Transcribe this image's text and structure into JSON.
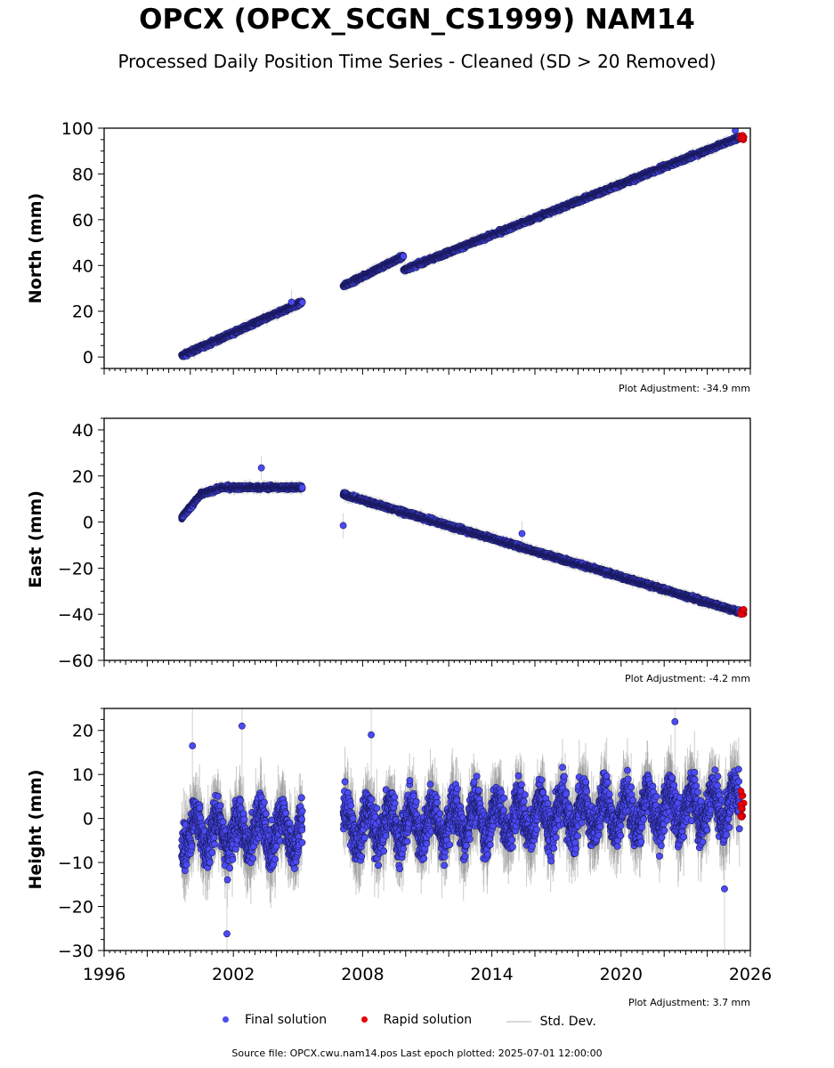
{
  "header": {
    "title": "OPCX (OPCX_SCGN_CS1999) NAM14",
    "subtitle": "Processed Daily Position Time Series - Cleaned (SD > 20 Removed)"
  },
  "colors": {
    "final": "#4b4bf5",
    "rapid": "#e8000b",
    "stddev": "#d3d3d3"
  },
  "legend": {
    "final": "Final solution",
    "rapid": "Rapid solution",
    "stddev": "Std. Dev."
  },
  "footer": {
    "source": "Source file: OPCX.cwu.nam14.pos  Last epoch plotted: 2025-07-01 12:00:00"
  },
  "chart_data": [
    {
      "type": "scatter",
      "ylabel": "North (mm)",
      "adjustment": "Plot Adjustment: -34.9 mm",
      "xlim": [
        1996,
        2026
      ],
      "ylim": [
        -5,
        100
      ],
      "yticks": [
        0,
        20,
        40,
        60,
        80,
        100
      ],
      "ytick_labels": [
        "0",
        "20",
        "40",
        "60",
        "80",
        "100"
      ],
      "segments": [
        {
          "x": [
            1999.6,
            2005.2
          ],
          "y": [
            0.5,
            24
          ]
        },
        {
          "x": [
            2007.1,
            2009.9
          ],
          "y": [
            31,
            44
          ]
        },
        {
          "x": [
            2009.9,
            2025.5
          ],
          "y": [
            38,
            96
          ]
        }
      ],
      "scatter": 1.2,
      "outliers": [
        {
          "x": 2004.7,
          "y": 24
        },
        {
          "x": 2025.3,
          "y": 99
        }
      ]
    },
    {
      "type": "scatter",
      "ylabel": "East (mm)",
      "adjustment": "Plot Adjustment: -4.2 mm",
      "xlim": [
        1996,
        2026
      ],
      "ylim": [
        -60,
        45
      ],
      "yticks": [
        -60,
        -40,
        -20,
        0,
        20,
        40
      ],
      "ytick_labels": [
        "−60",
        "−40",
        "−20",
        "0",
        "20",
        "40"
      ],
      "segments": [
        {
          "x": [
            1999.6,
            2000.5
          ],
          "y": [
            2,
            12
          ]
        },
        {
          "x": [
            2000.5,
            2001.5
          ],
          "y": [
            12,
            15
          ]
        },
        {
          "x": [
            2001.5,
            2005.2
          ],
          "y": [
            15,
            15
          ]
        },
        {
          "x": [
            2007.1,
            2025.5
          ],
          "y": [
            12,
            -39
          ]
        }
      ],
      "scatter": 1.2,
      "outliers": [
        {
          "x": 2003.3,
          "y": 23.5
        },
        {
          "x": 2007.1,
          "y": -1.5
        },
        {
          "x": 2015.4,
          "y": -5
        }
      ]
    },
    {
      "type": "scatter",
      "ylabel": "Height (mm)",
      "adjustment": "Plot Adjustment: 3.7 mm",
      "xlim": [
        1996,
        2026
      ],
      "ylim": [
        -30,
        25
      ],
      "yticks": [
        -30,
        -20,
        -10,
        0,
        10,
        20
      ],
      "ytick_labels": [
        "−30",
        "−20",
        "−10",
        "0",
        "10",
        "20"
      ],
      "xticks": [
        1996,
        2002,
        2008,
        2014,
        2020,
        2026
      ],
      "xtick_labels": [
        "1996",
        "2002",
        "2008",
        "2014",
        "2020",
        "2026"
      ],
      "segments": [
        {
          "x": [
            1999.6,
            2005.2
          ],
          "y": [
            -3,
            -3
          ]
        },
        {
          "x": [
            2007.1,
            2025.5
          ],
          "y": [
            -2,
            3
          ]
        }
      ],
      "scatter": 6.5,
      "outliers": [
        {
          "x": 2000.1,
          "y": 16.5
        },
        {
          "x": 2002.4,
          "y": 21
        },
        {
          "x": 2001.7,
          "y": -26.2
        },
        {
          "x": 2008.4,
          "y": 19
        },
        {
          "x": 2022.5,
          "y": 22
        },
        {
          "x": 2024.8,
          "y": -16
        }
      ]
    }
  ]
}
